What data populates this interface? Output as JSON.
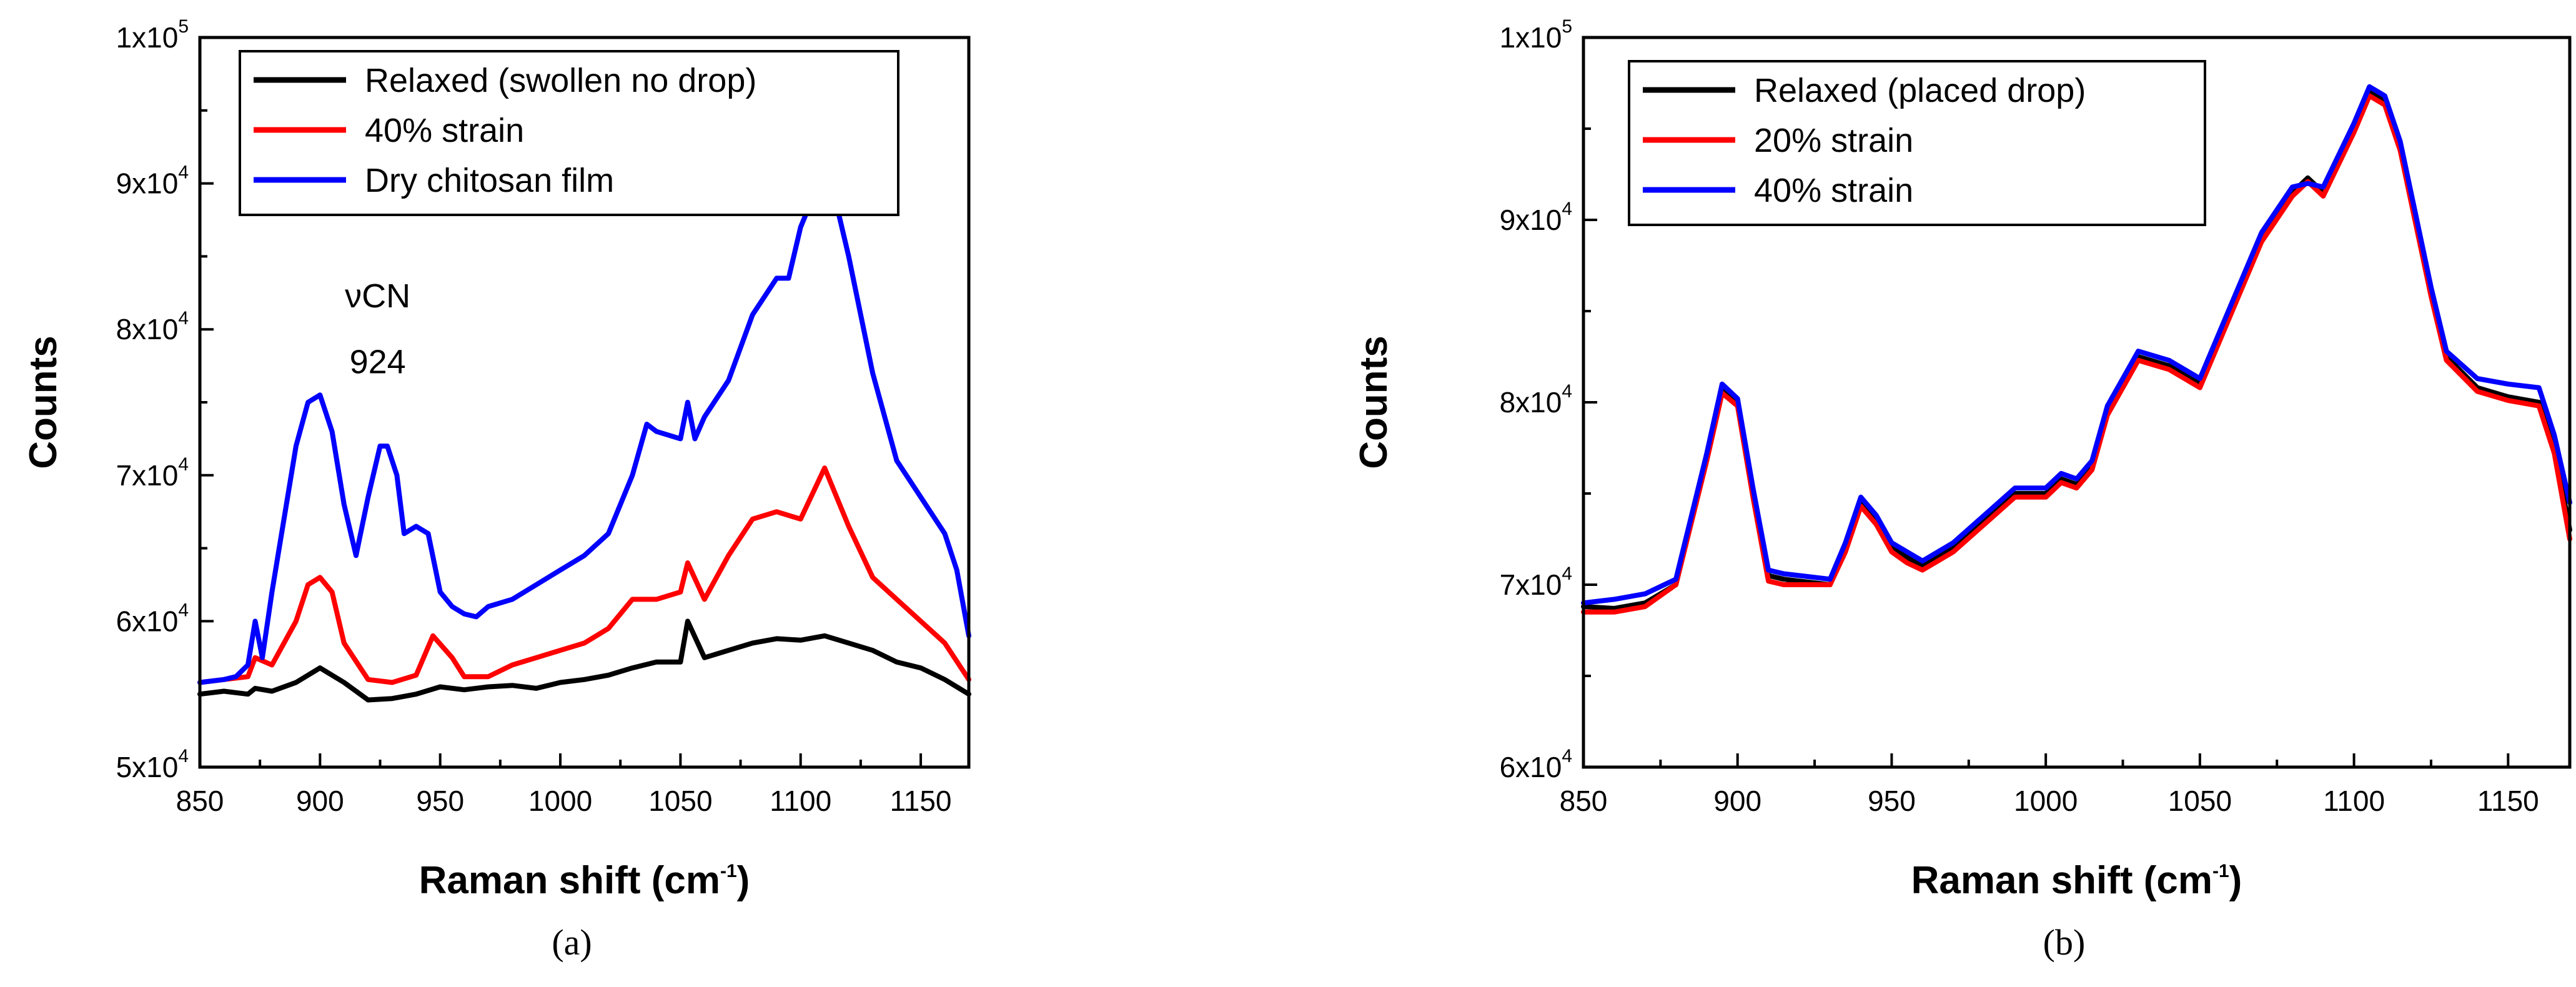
{
  "colors": {
    "black": "#000000",
    "red": "#ff0000",
    "blue": "#0000ff"
  },
  "chart_data": [
    {
      "panel": "(a)",
      "type": "line",
      "title": "",
      "xlabel": "Raman shift (cm",
      "xlabel_sup": "-1",
      "xlabel_close": ")",
      "ylabel": "Counts",
      "xlim": [
        850,
        1170
      ],
      "ylim": [
        50000,
        100000
      ],
      "xticks": [
        850,
        900,
        950,
        1000,
        1050,
        1100,
        1150
      ],
      "yticks": [
        {
          "value": 50000,
          "mant": "5x10",
          "exp": "4"
        },
        {
          "value": 60000,
          "mant": "6x10",
          "exp": "4"
        },
        {
          "value": 70000,
          "mant": "7x10",
          "exp": "4"
        },
        {
          "value": 80000,
          "mant": "8x10",
          "exp": "4"
        },
        {
          "value": 90000,
          "mant": "9x10",
          "exp": "4"
        },
        {
          "value": 100000,
          "mant": "1x10",
          "exp": "5"
        }
      ],
      "annotations": [
        {
          "text": "νCN",
          "x": 924,
          "y": 81500
        },
        {
          "text": "924",
          "x": 924,
          "y": 77000
        }
      ],
      "legend_position": "top-left",
      "series": [
        {
          "name": "Relaxed (swollen no drop)",
          "color": "#000000",
          "x": [
            850,
            860,
            870,
            873,
            880,
            890,
            900,
            910,
            920,
            930,
            940,
            950,
            960,
            970,
            980,
            990,
            1000,
            1010,
            1020,
            1030,
            1040,
            1050,
            1053,
            1060,
            1070,
            1080,
            1090,
            1100,
            1110,
            1120,
            1130,
            1140,
            1150,
            1160,
            1170
          ],
          "y": [
            55000,
            55200,
            55000,
            55400,
            55200,
            55800,
            56800,
            55800,
            54600,
            54700,
            55000,
            55500,
            55300,
            55500,
            55600,
            55400,
            55800,
            56000,
            56300,
            56800,
            57200,
            57200,
            60000,
            57500,
            58000,
            58500,
            58800,
            58700,
            59000,
            58500,
            58000,
            57200,
            56800,
            56000,
            55000
          ]
        },
        {
          "name": "40% strain",
          "color": "#ff0000",
          "x": [
            850,
            860,
            870,
            873,
            880,
            890,
            895,
            900,
            905,
            910,
            920,
            930,
            940,
            947,
            955,
            960,
            970,
            980,
            990,
            1000,
            1010,
            1020,
            1030,
            1040,
            1050,
            1053,
            1060,
            1070,
            1080,
            1090,
            1100,
            1110,
            1120,
            1130,
            1140,
            1150,
            1160,
            1170
          ],
          "y": [
            55800,
            56000,
            56200,
            57500,
            57000,
            60000,
            62500,
            63000,
            62000,
            58500,
            56000,
            55800,
            56300,
            59000,
            57500,
            56200,
            56200,
            57000,
            57500,
            58000,
            58500,
            59500,
            61500,
            61500,
            62000,
            64000,
            61500,
            64500,
            67000,
            67500,
            67000,
            70500,
            66500,
            63000,
            61500,
            60000,
            58500,
            56000
          ]
        },
        {
          "name": "Dry chitosan film",
          "color": "#0000ff",
          "x": [
            850,
            860,
            865,
            870,
            873,
            876,
            880,
            890,
            895,
            900,
            905,
            910,
            915,
            920,
            925,
            928,
            932,
            935,
            940,
            945,
            950,
            955,
            960,
            965,
            970,
            980,
            990,
            1000,
            1010,
            1020,
            1030,
            1036,
            1040,
            1050,
            1053,
            1056,
            1060,
            1070,
            1080,
            1090,
            1095,
            1100,
            1105,
            1110,
            1115,
            1120,
            1130,
            1140,
            1150,
            1160,
            1165,
            1170
          ],
          "y": [
            55800,
            56000,
            56200,
            57000,
            60000,
            57500,
            62000,
            72000,
            75000,
            75500,
            73000,
            68000,
            64500,
            68500,
            72000,
            72000,
            70000,
            66000,
            66500,
            66000,
            62000,
            61000,
            60500,
            60300,
            61000,
            61500,
            62500,
            63500,
            64500,
            66000,
            70000,
            73500,
            73000,
            72500,
            75000,
            72500,
            74000,
            76500,
            81000,
            83500,
            83500,
            87000,
            89000,
            89500,
            88500,
            85000,
            77000,
            71000,
            68500,
            66000,
            63500,
            59000
          ]
        }
      ]
    },
    {
      "panel": "(b)",
      "type": "line",
      "title": "",
      "xlabel": "Raman shift (cm",
      "xlabel_sup": "-1",
      "xlabel_close": ")",
      "ylabel": "Counts",
      "xlim": [
        850,
        1170
      ],
      "ylim": [
        60000,
        100000
      ],
      "xticks": [
        850,
        900,
        950,
        1000,
        1050,
        1100,
        1150
      ],
      "yticks": [
        {
          "value": 60000,
          "mant": "6x10",
          "exp": "4"
        },
        {
          "value": 70000,
          "mant": "7x10",
          "exp": "4"
        },
        {
          "value": 80000,
          "mant": "8x10",
          "exp": "4"
        },
        {
          "value": 90000,
          "mant": "9x10",
          "exp": "4"
        },
        {
          "value": 100000,
          "mant": "1x10",
          "exp": "5"
        }
      ],
      "annotations": [],
      "legend_position": "top-left",
      "series": [
        {
          "name": "Relaxed (placed drop)",
          "color": "#000000",
          "x": [
            850,
            860,
            870,
            880,
            890,
            895,
            900,
            905,
            910,
            915,
            920,
            930,
            935,
            940,
            945,
            950,
            955,
            960,
            970,
            980,
            990,
            1000,
            1005,
            1010,
            1015,
            1020,
            1030,
            1040,
            1050,
            1060,
            1070,
            1080,
            1085,
            1090,
            1100,
            1105,
            1110,
            1115,
            1120,
            1125,
            1130,
            1140,
            1150,
            1160,
            1165,
            1170
          ],
          "y": [
            68800,
            68700,
            69000,
            70000,
            77000,
            80800,
            80000,
            75000,
            70500,
            70300,
            70200,
            70000,
            72000,
            74500,
            73500,
            72000,
            71500,
            71000,
            72000,
            73500,
            75000,
            75000,
            75800,
            75500,
            76500,
            79500,
            82500,
            82000,
            81000,
            85000,
            89000,
            91500,
            92300,
            91500,
            95000,
            97000,
            96500,
            94000,
            90000,
            86000,
            82500,
            80800,
            80300,
            80000,
            77500,
            73000
          ]
        },
        {
          "name": "20% strain",
          "color": "#ff0000",
          "x": [
            850,
            860,
            870,
            880,
            890,
            895,
            900,
            905,
            910,
            915,
            920,
            930,
            935,
            940,
            945,
            950,
            955,
            960,
            970,
            980,
            990,
            1000,
            1005,
            1010,
            1015,
            1020,
            1030,
            1040,
            1050,
            1060,
            1070,
            1080,
            1085,
            1090,
            1100,
            1105,
            1110,
            1115,
            1120,
            1125,
            1130,
            1140,
            1150,
            1160,
            1165,
            1170
          ],
          "y": [
            68500,
            68500,
            68800,
            70000,
            76800,
            80500,
            79800,
            74800,
            70200,
            70000,
            70000,
            70000,
            71800,
            74300,
            73300,
            71800,
            71200,
            70800,
            71800,
            73300,
            74800,
            74800,
            75600,
            75300,
            76300,
            79300,
            82300,
            81800,
            80800,
            84800,
            88800,
            91300,
            92100,
            91300,
            94800,
            96800,
            96300,
            93800,
            89800,
            85800,
            82300,
            80600,
            80100,
            79800,
            77200,
            72500
          ]
        },
        {
          "name": "40% strain",
          "color": "#0000ff",
          "x": [
            850,
            860,
            870,
            880,
            890,
            895,
            900,
            905,
            910,
            915,
            920,
            930,
            935,
            940,
            945,
            950,
            955,
            960,
            970,
            980,
            990,
            1000,
            1005,
            1010,
            1015,
            1020,
            1030,
            1040,
            1050,
            1060,
            1070,
            1080,
            1085,
            1090,
            1100,
            1105,
            1110,
            1115,
            1120,
            1125,
            1130,
            1140,
            1150,
            1160,
            1165,
            1170
          ],
          "y": [
            69000,
            69200,
            69500,
            70300,
            77200,
            81000,
            80200,
            75300,
            70800,
            70600,
            70500,
            70300,
            72300,
            74800,
            73800,
            72300,
            71800,
            71300,
            72300,
            73800,
            75300,
            75300,
            76100,
            75800,
            76800,
            79800,
            82800,
            82300,
            81300,
            85300,
            89300,
            91800,
            92000,
            91800,
            95300,
            97300,
            96800,
            94300,
            90300,
            86300,
            82800,
            81300,
            81000,
            80800,
            78200,
            74500
          ]
        }
      ]
    }
  ]
}
